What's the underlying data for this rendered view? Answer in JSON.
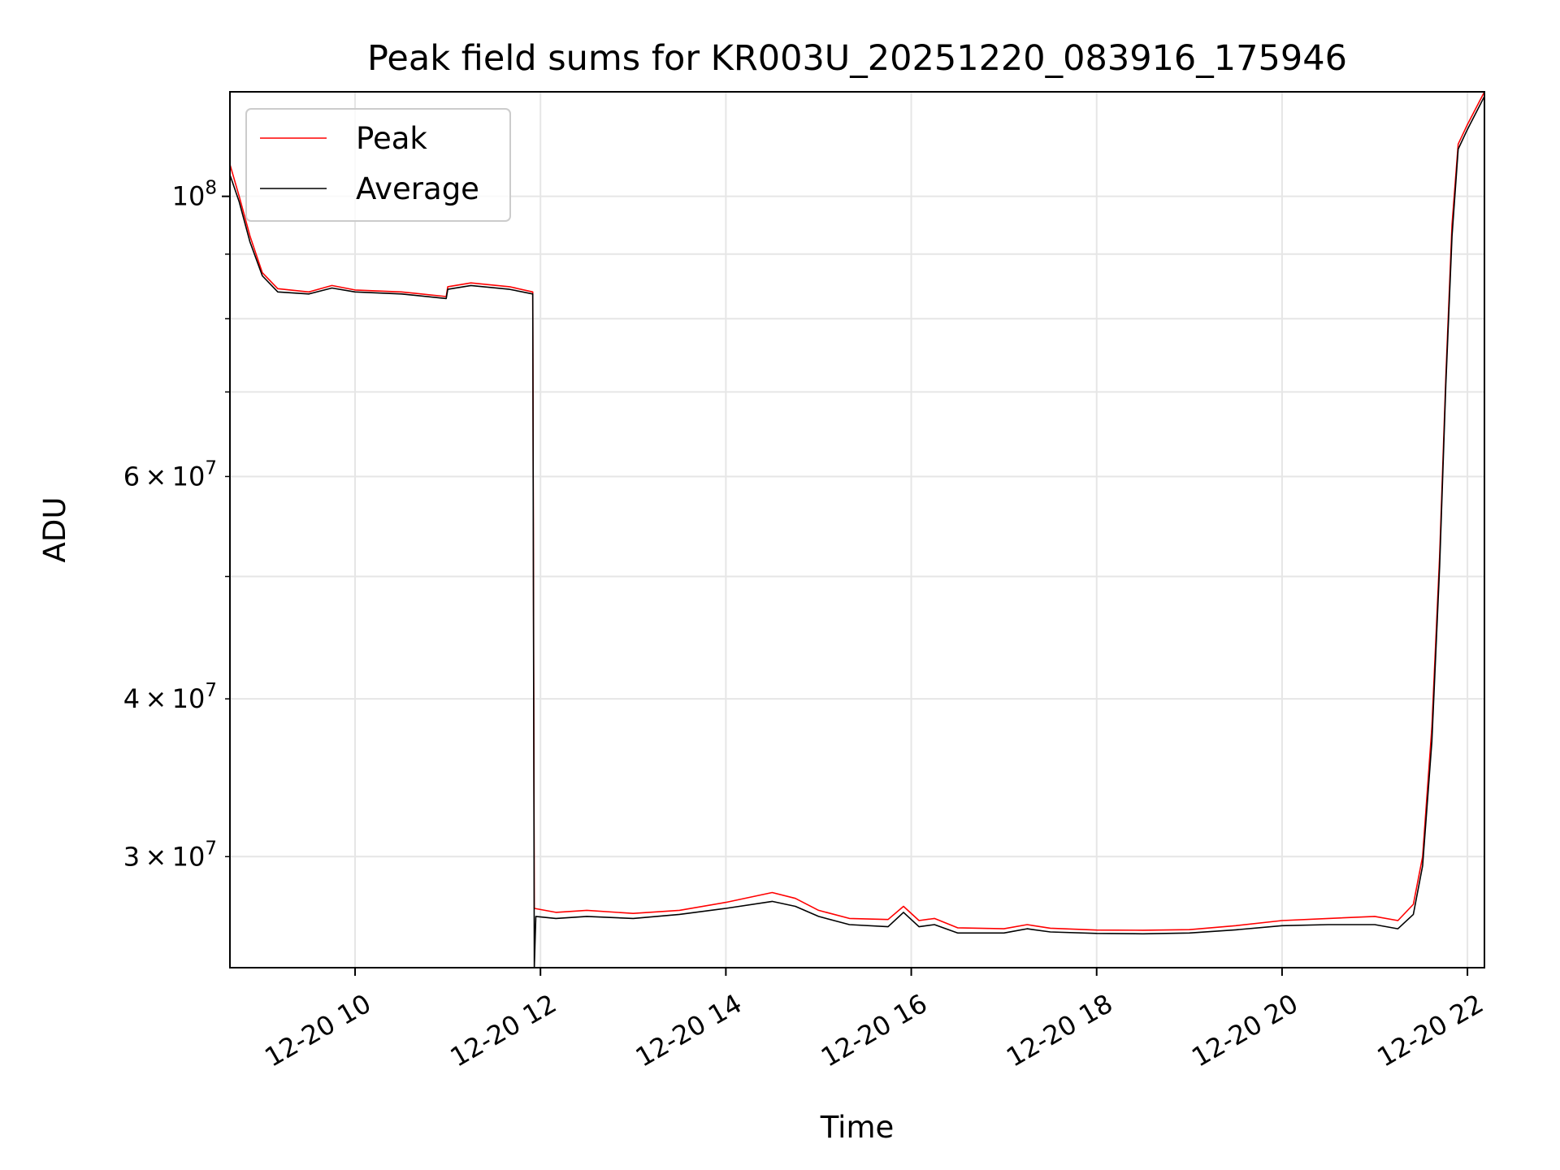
{
  "chart_data": {
    "type": "line",
    "title": "Peak field sums for KR003U_20251220_083916_175946",
    "xlabel": "Time",
    "ylabel": "ADU",
    "yscale": "log",
    "xlim": [
      "2025-12-20T08:39",
      "2025-12-20T22:11"
    ],
    "ylim": [
      24500000,
      121000000
    ],
    "grid": true,
    "legend": "top-left",
    "x_ticks": [
      {
        "value": "2025-12-20T10:00",
        "label": "12-20 10"
      },
      {
        "value": "2025-12-20T12:00",
        "label": "12-20 12"
      },
      {
        "value": "2025-12-20T14:00",
        "label": "12-20 14"
      },
      {
        "value": "2025-12-20T16:00",
        "label": "12-20 16"
      },
      {
        "value": "2025-12-20T18:00",
        "label": "12-20 18"
      },
      {
        "value": "2025-12-20T20:00",
        "label": "12-20 20"
      },
      {
        "value": "2025-12-20T22:00",
        "label": "12-20 22"
      }
    ],
    "y_major_ticks": [
      {
        "value": 100000000,
        "base": "10",
        "exp": "8"
      }
    ],
    "y_minor_ticks": [
      {
        "value": 30000000,
        "mant": "3",
        "exp": "7"
      },
      {
        "value": 40000000,
        "mant": "4",
        "exp": "7"
      },
      {
        "value": 60000000,
        "mant": "6",
        "exp": "7"
      }
    ],
    "y_unlabeled_ticks": [
      50000000,
      70000000,
      80000000,
      90000000
    ],
    "series": [
      {
        "name": "Peak",
        "color": "#ff0000",
        "points": [
          [
            "2025-12-20T08:39",
            106000000
          ],
          [
            "2025-12-20T08:45",
            100000000
          ],
          [
            "2025-12-20T08:52",
            93000000
          ],
          [
            "2025-12-20T09:00",
            87000000
          ],
          [
            "2025-12-20T09:10",
            84500000
          ],
          [
            "2025-12-20T09:30",
            84000000
          ],
          [
            "2025-12-20T09:45",
            85000000
          ],
          [
            "2025-12-20T10:00",
            84300000
          ],
          [
            "2025-12-20T10:30",
            84000000
          ],
          [
            "2025-12-20T10:59",
            83300000
          ],
          [
            "2025-12-20T11:00",
            84800000
          ],
          [
            "2025-12-20T11:15",
            85400000
          ],
          [
            "2025-12-20T11:40",
            84800000
          ],
          [
            "2025-12-20T11:55",
            84000000
          ],
          [
            "2025-12-20T11:56",
            27300000
          ],
          [
            "2025-12-20T12:10",
            27100000
          ],
          [
            "2025-12-20T12:30",
            27200000
          ],
          [
            "2025-12-20T13:00",
            27050000
          ],
          [
            "2025-12-20T13:30",
            27200000
          ],
          [
            "2025-12-20T14:00",
            27600000
          ],
          [
            "2025-12-20T14:30",
            28100000
          ],
          [
            "2025-12-20T14:45",
            27800000
          ],
          [
            "2025-12-20T15:00",
            27200000
          ],
          [
            "2025-12-20T15:20",
            26800000
          ],
          [
            "2025-12-20T15:45",
            26750000
          ],
          [
            "2025-12-20T15:55",
            27400000
          ],
          [
            "2025-12-20T16:05",
            26700000
          ],
          [
            "2025-12-20T16:15",
            26800000
          ],
          [
            "2025-12-20T16:30",
            26350000
          ],
          [
            "2025-12-20T17:00",
            26300000
          ],
          [
            "2025-12-20T17:15",
            26500000
          ],
          [
            "2025-12-20T17:30",
            26330000
          ],
          [
            "2025-12-20T18:00",
            26240000
          ],
          [
            "2025-12-20T18:30",
            26230000
          ],
          [
            "2025-12-20T19:00",
            26260000
          ],
          [
            "2025-12-20T19:30",
            26450000
          ],
          [
            "2025-12-20T20:00",
            26700000
          ],
          [
            "2025-12-20T20:30",
            26800000
          ],
          [
            "2025-12-20T21:00",
            26900000
          ],
          [
            "2025-12-20T21:15",
            26700000
          ],
          [
            "2025-12-20T21:25",
            27500000
          ],
          [
            "2025-12-20T21:31",
            30000000
          ],
          [
            "2025-12-20T21:37",
            38000000
          ],
          [
            "2025-12-20T21:42",
            52000000
          ],
          [
            "2025-12-20T21:46",
            72000000
          ],
          [
            "2025-12-20T21:50",
            95000000
          ],
          [
            "2025-12-20T21:54",
            110000000
          ],
          [
            "2025-12-20T22:00",
            114000000
          ],
          [
            "2025-12-20T22:11",
            121000000
          ]
        ]
      },
      {
        "name": "Average",
        "color": "#000000",
        "points": [
          [
            "2025-12-20T08:39",
            104000000
          ],
          [
            "2025-12-20T08:45",
            99000000
          ],
          [
            "2025-12-20T08:52",
            92000000
          ],
          [
            "2025-12-20T09:00",
            86500000
          ],
          [
            "2025-12-20T09:10",
            84000000
          ],
          [
            "2025-12-20T09:30",
            83700000
          ],
          [
            "2025-12-20T09:45",
            84600000
          ],
          [
            "2025-12-20T10:00",
            84000000
          ],
          [
            "2025-12-20T10:30",
            83700000
          ],
          [
            "2025-12-20T10:59",
            83000000
          ],
          [
            "2025-12-20T11:00",
            84400000
          ],
          [
            "2025-12-20T11:15",
            85000000
          ],
          [
            "2025-12-20T11:40",
            84400000
          ],
          [
            "2025-12-20T11:55",
            83700000
          ],
          [
            "2025-12-20T11:56",
            24500000
          ],
          [
            "2025-12-20T11:57",
            26900000
          ],
          [
            "2025-12-20T12:10",
            26800000
          ],
          [
            "2025-12-20T12:30",
            26900000
          ],
          [
            "2025-12-20T13:00",
            26800000
          ],
          [
            "2025-12-20T13:30",
            27000000
          ],
          [
            "2025-12-20T14:00",
            27300000
          ],
          [
            "2025-12-20T14:30",
            27650000
          ],
          [
            "2025-12-20T14:45",
            27400000
          ],
          [
            "2025-12-20T15:00",
            26900000
          ],
          [
            "2025-12-20T15:20",
            26500000
          ],
          [
            "2025-12-20T15:45",
            26400000
          ],
          [
            "2025-12-20T15:55",
            27100000
          ],
          [
            "2025-12-20T16:05",
            26400000
          ],
          [
            "2025-12-20T16:15",
            26500000
          ],
          [
            "2025-12-20T16:30",
            26100000
          ],
          [
            "2025-12-20T17:00",
            26100000
          ],
          [
            "2025-12-20T17:15",
            26300000
          ],
          [
            "2025-12-20T17:30",
            26150000
          ],
          [
            "2025-12-20T18:00",
            26080000
          ],
          [
            "2025-12-20T18:30",
            26060000
          ],
          [
            "2025-12-20T19:00",
            26100000
          ],
          [
            "2025-12-20T19:30",
            26250000
          ],
          [
            "2025-12-20T20:00",
            26450000
          ],
          [
            "2025-12-20T20:30",
            26500000
          ],
          [
            "2025-12-20T21:00",
            26500000
          ],
          [
            "2025-12-20T21:15",
            26300000
          ],
          [
            "2025-12-20T21:25",
            27000000
          ],
          [
            "2025-12-20T21:31",
            29500000
          ],
          [
            "2025-12-20T21:37",
            37000000
          ],
          [
            "2025-12-20T21:42",
            51000000
          ],
          [
            "2025-12-20T21:46",
            71000000
          ],
          [
            "2025-12-20T21:50",
            93000000
          ],
          [
            "2025-12-20T21:54",
            109000000
          ],
          [
            "2025-12-20T22:00",
            113000000
          ],
          [
            "2025-12-20T22:11",
            120000000
          ]
        ]
      }
    ]
  }
}
